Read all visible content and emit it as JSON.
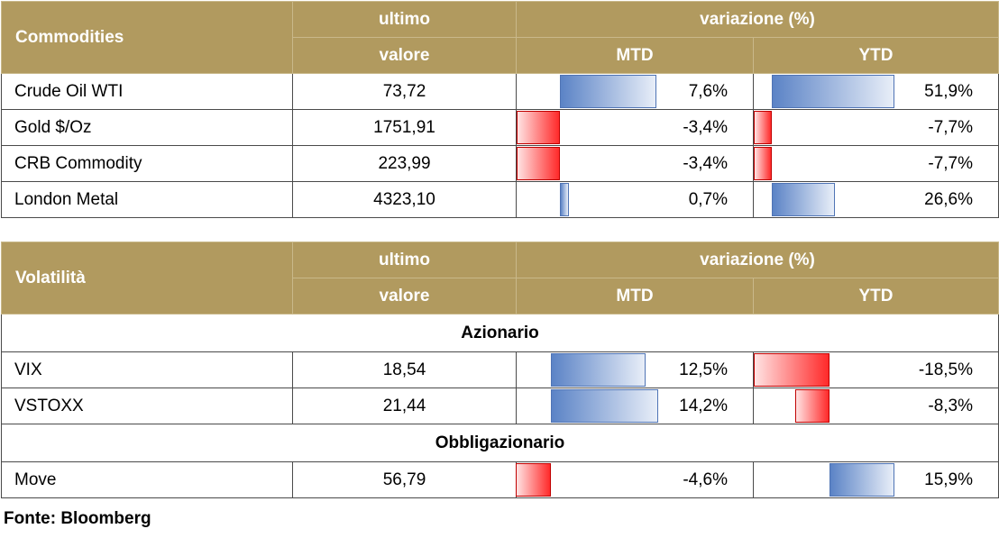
{
  "commodities": {
    "title": "Commodities",
    "col_last_1": "ultimo",
    "col_last_2": "valore",
    "col_change": "variazione (%)",
    "col_mtd": "MTD",
    "col_ytd": "YTD",
    "rows": [
      {
        "name": "Crude Oil WTI",
        "value": "73,72",
        "mtd": "7,6%",
        "ytd": "51,9%",
        "mtd_num": 7.6,
        "ytd_num": 51.9
      },
      {
        "name": "Gold $/Oz",
        "value": "1751,91",
        "mtd": "-3,4%",
        "ytd": "-7,7%",
        "mtd_num": -3.4,
        "ytd_num": -7.7
      },
      {
        "name": "CRB Commodity",
        "value": "223,99",
        "mtd": "-3,4%",
        "ytd": "-7,7%",
        "mtd_num": -3.4,
        "ytd_num": -7.7
      },
      {
        "name": "London Metal",
        "value": "4323,10",
        "mtd": "0,7%",
        "ytd": "26,6%",
        "mtd_num": 0.7,
        "ytd_num": 26.6
      }
    ]
  },
  "volatility": {
    "title": "Volatilità",
    "col_last_1": "ultimo",
    "col_last_2": "valore",
    "col_change": "variazione (%)",
    "col_mtd": "MTD",
    "col_ytd": "YTD",
    "section_equity": "Azionario",
    "section_bond": "Obbligazionario",
    "equity_rows": [
      {
        "name": "VIX",
        "value": "18,54",
        "mtd": "12,5%",
        "ytd": "-18,5%",
        "mtd_num": 12.5,
        "ytd_num": -18.5
      },
      {
        "name": "VSTOXX",
        "value": "21,44",
        "mtd": "14,2%",
        "ytd": "-8,3%",
        "mtd_num": 14.2,
        "ytd_num": -8.3
      }
    ],
    "bond_rows": [
      {
        "name": "Move",
        "value": "56,79",
        "mtd": "-4,6%",
        "ytd": "15,9%",
        "mtd_num": -4.6,
        "ytd_num": 15.9
      }
    ]
  },
  "source": "Fonte: Bloomberg",
  "colors": {
    "header_bg": "#b19a5f",
    "positive_bar": "#5b83c6",
    "negative_bar": "#ff2a2a"
  }
}
